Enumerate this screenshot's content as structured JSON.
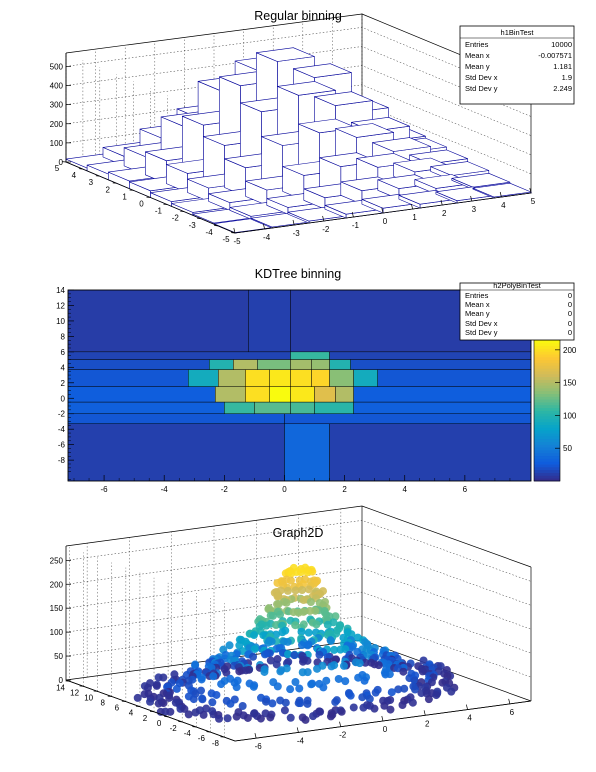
{
  "chart_data": [
    {
      "type": "lego3d",
      "title": "Regular binning",
      "xlim": [
        -5,
        5
      ],
      "ylim": [
        -5,
        5
      ],
      "zlim": [
        0,
        570
      ],
      "x_ticks": [
        -5,
        -4,
        -3,
        -2,
        -1,
        0,
        1,
        2,
        3,
        4,
        5
      ],
      "y_ticks": [
        -5,
        -4,
        -3,
        -2,
        -1,
        0,
        1,
        2,
        3,
        4,
        5
      ],
      "z_ticks": [
        0,
        100,
        200,
        300,
        400,
        500
      ],
      "grid": true,
      "legend_position": "top-right",
      "stats": {
        "name": "h1BinTest",
        "rows": [
          {
            "label": "Entries",
            "value": "10000"
          },
          {
            "label": "Mean x",
            "value": "-0.007571"
          },
          {
            "label": "Mean y",
            "value": "1.181"
          },
          {
            "label": "Std Dev x",
            "value": "1.9"
          },
          {
            "label": "Std Dev y",
            "value": "2.249"
          }
        ]
      },
      "bins_x": [
        -5,
        -3.75,
        -2.5,
        -1.25,
        0,
        1.25,
        2.5,
        3.75,
        5
      ],
      "bins_y": [
        -5,
        -3.75,
        -2.5,
        -1.25,
        0,
        1.25,
        2.5,
        3.75,
        5
      ],
      "heights": [
        [
          2,
          5,
          10,
          20,
          25,
          20,
          12,
          5
        ],
        [
          6,
          15,
          35,
          60,
          70,
          55,
          30,
          10
        ],
        [
          15,
          40,
          80,
          130,
          150,
          120,
          70,
          25
        ],
        [
          25,
          70,
          150,
          240,
          280,
          230,
          130,
          40
        ],
        [
          35,
          100,
          220,
          370,
          430,
          350,
          190,
          55
        ],
        [
          40,
          120,
          280,
          460,
          560,
          450,
          240,
          65
        ],
        [
          30,
          95,
          230,
          390,
          470,
          380,
          200,
          50
        ],
        [
          15,
          50,
          120,
          200,
          240,
          190,
          100,
          25
        ]
      ]
    },
    {
      "type": "heatmap",
      "title": "KDTree binning",
      "xlim": [
        -7.2,
        8.2
      ],
      "ylim": [
        -10.7,
        14
      ],
      "x_ticks": [
        -6,
        -4,
        -2,
        0,
        2,
        4,
        6
      ],
      "y_ticks": [
        -8,
        -6,
        -4,
        -2,
        0,
        2,
        4,
        6,
        8,
        10,
        12,
        14
      ],
      "zlim": [
        0,
        215
      ],
      "z_ticks": [
        50,
        100,
        150,
        200
      ],
      "palette": [
        "#352a87",
        "#0f5cdd",
        "#1481d6",
        "#06a4ca",
        "#2eb7a4",
        "#87bf77",
        "#d1bb59",
        "#fec832",
        "#f9fb0e"
      ],
      "legend_position": "top-right",
      "stats": {
        "name": "h2PolyBinTest",
        "rows": [
          {
            "label": "Entries",
            "value": "0"
          },
          {
            "label": "Mean x",
            "value": "0"
          },
          {
            "label": "Mean y",
            "value": "0"
          },
          {
            "label": "Std Dev x",
            "value": "0"
          },
          {
            "label": "Std Dev y",
            "value": "0"
          }
        ]
      },
      "cells": [
        [
          -7.2,
          -1.2,
          6,
          14,
          10
        ],
        [
          -1.2,
          0.2,
          6,
          14,
          12
        ],
        [
          0.2,
          8.2,
          6,
          14,
          10
        ],
        [
          -7.2,
          0.2,
          5,
          6,
          14
        ],
        [
          0.2,
          1.5,
          5,
          6,
          110
        ],
        [
          1.5,
          8.2,
          5,
          6,
          14
        ],
        [
          -7.2,
          -2.5,
          3.7,
          5,
          20
        ],
        [
          -2.5,
          -1.7,
          3.7,
          5,
          100
        ],
        [
          -1.7,
          -0.9,
          3.7,
          5,
          150
        ],
        [
          -0.9,
          0.2,
          3.7,
          5,
          130
        ],
        [
          0.2,
          0.9,
          3.7,
          5,
          145
        ],
        [
          0.9,
          1.5,
          3.7,
          5,
          140
        ],
        [
          1.5,
          2.2,
          3.7,
          5,
          100
        ],
        [
          2.2,
          8.2,
          3.7,
          5,
          20
        ],
        [
          -7.2,
          -3.2,
          1.5,
          3.7,
          24
        ],
        [
          -3.2,
          -2.2,
          1.5,
          3.7,
          90
        ],
        [
          -2.2,
          -1.3,
          1.5,
          3.7,
          150
        ],
        [
          -1.3,
          -0.5,
          1.5,
          3.7,
          200
        ],
        [
          -0.5,
          0.2,
          1.5,
          3.7,
          205
        ],
        [
          0.2,
          0.9,
          1.5,
          3.7,
          200
        ],
        [
          0.9,
          1.5,
          1.5,
          3.7,
          195
        ],
        [
          1.5,
          2.3,
          1.5,
          3.7,
          135
        ],
        [
          2.3,
          3.1,
          1.5,
          3.7,
          90
        ],
        [
          3.1,
          8.2,
          1.5,
          3.7,
          24
        ],
        [
          -7.2,
          -2.3,
          -0.5,
          1.5,
          28
        ],
        [
          -2.3,
          -1.3,
          -0.5,
          1.5,
          150
        ],
        [
          -1.3,
          -0.5,
          -0.5,
          1.5,
          200
        ],
        [
          -0.5,
          0.2,
          -0.5,
          1.5,
          215
        ],
        [
          0.2,
          1.0,
          -0.5,
          1.5,
          205
        ],
        [
          1.0,
          1.7,
          -0.5,
          1.5,
          170
        ],
        [
          1.7,
          2.3,
          -0.5,
          1.5,
          150
        ],
        [
          2.3,
          8.2,
          -0.5,
          1.5,
          28
        ],
        [
          -7.2,
          -2.0,
          -2,
          -0.5,
          30
        ],
        [
          -2.0,
          -1.0,
          -2,
          -0.5,
          110
        ],
        [
          -1.0,
          0.2,
          -2,
          -0.5,
          120
        ],
        [
          0.2,
          1.0,
          -2,
          -0.5,
          115
        ],
        [
          1.0,
          2.3,
          -2,
          -0.5,
          105
        ],
        [
          2.3,
          8.2,
          -2,
          -0.5,
          30
        ],
        [
          -7.2,
          0.0,
          -3.3,
          -2,
          24
        ],
        [
          0.0,
          8.2,
          -3.3,
          -2,
          24
        ],
        [
          -7.2,
          0.0,
          -10.7,
          -3.3,
          12
        ],
        [
          0.0,
          1.5,
          -10.7,
          -3.3,
          35
        ],
        [
          1.5,
          8.2,
          -10.7,
          -3.3,
          12
        ]
      ]
    },
    {
      "type": "scatter3d",
      "title": "Graph2D",
      "xlim": [
        -7,
        7
      ],
      "ylim": [
        -9.5,
        14.5
      ],
      "zlim": [
        0,
        280
      ],
      "x_ticks": [
        -6,
        -4,
        -2,
        0,
        2,
        4,
        6
      ],
      "y_ticks": [
        -8,
        -6,
        -4,
        -2,
        0,
        2,
        4,
        6,
        8,
        10,
        12,
        14
      ],
      "z_ticks": [
        0,
        50,
        100,
        150,
        200,
        250
      ],
      "grid": true,
      "rings": [
        {
          "z": 5,
          "rx": 6.2,
          "ry": 8.5,
          "count": 170
        },
        {
          "z": 25,
          "rx": 5.2,
          "ry": 7.5,
          "count": 110
        },
        {
          "z": 50,
          "rx": 4.0,
          "ry": 6.0,
          "count": 80
        },
        {
          "z": 75,
          "rx": 3.2,
          "ry": 4.8,
          "count": 60
        },
        {
          "z": 100,
          "rx": 2.4,
          "ry": 3.6,
          "count": 45
        },
        {
          "z": 125,
          "rx": 1.9,
          "ry": 2.9,
          "count": 38
        },
        {
          "z": 150,
          "rx": 1.5,
          "ry": 2.3,
          "count": 30
        },
        {
          "z": 175,
          "rx": 1.2,
          "ry": 1.8,
          "count": 26
        },
        {
          "z": 200,
          "rx": 1.0,
          "ry": 1.5,
          "count": 22
        },
        {
          "z": 225,
          "rx": 0.8,
          "ry": 1.1,
          "count": 18
        },
        {
          "z": 250,
          "rx": 0.55,
          "ry": 0.7,
          "count": 14
        }
      ]
    }
  ]
}
